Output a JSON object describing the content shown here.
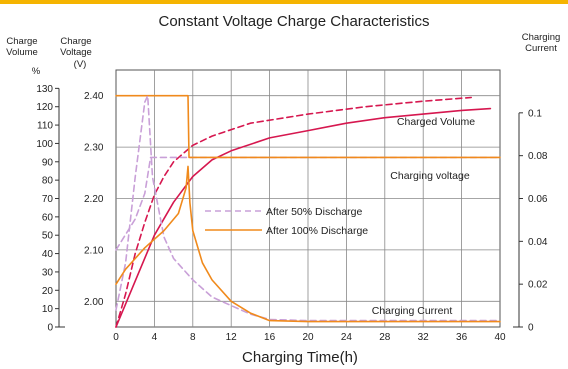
{
  "chart_data": {
    "type": "line",
    "title": "Constant Voltage Charge Characteristics",
    "xlabel": "Charging Time(h)",
    "x_ticks": [
      0,
      4,
      8,
      12,
      16,
      20,
      24,
      28,
      32,
      36,
      40
    ],
    "xlim": [
      0,
      40
    ],
    "axes": {
      "charge_volume": {
        "label_lines": [
          "Charge",
          "Volume"
        ],
        "unit": "%",
        "ticks": [
          0,
          10,
          20,
          30,
          40,
          50,
          60,
          70,
          80,
          90,
          100,
          110,
          120,
          130
        ],
        "range": [
          0,
          140
        ]
      },
      "charge_voltage": {
        "label_lines": [
          "Charge",
          "Voltage",
          "(V)"
        ],
        "ticks": [
          "2.00",
          "2.10",
          "2.20",
          "2.30",
          "2.40"
        ],
        "range": [
          1.95,
          2.45
        ]
      },
      "charging_current": {
        "label_lines": [
          "Charging",
          "Current"
        ],
        "ticks": [
          "0",
          "0.02",
          "0.04",
          "0.06",
          "0.08",
          "0.1"
        ],
        "range": [
          0,
          0.12
        ]
      }
    },
    "annotations": [
      "Charged Volume",
      "Charging voltage",
      "Charging Current"
    ],
    "legend": [
      {
        "label": "After 50% Discharge",
        "style": "dashed",
        "color": "#c9a0d8"
      },
      {
        "label": "After 100% Discharge",
        "style": "solid",
        "color": "#f08a1c"
      }
    ],
    "series": [
      {
        "curve": "charged_volume",
        "discharge": "50%",
        "style": "dashed",
        "color": "#d6174f",
        "axis": "charge_volume",
        "points": [
          [
            0,
            0
          ],
          [
            1,
            18
          ],
          [
            2,
            40
          ],
          [
            3,
            57
          ],
          [
            4,
            72
          ],
          [
            5,
            82
          ],
          [
            6,
            90
          ],
          [
            8,
            99
          ],
          [
            10,
            104
          ],
          [
            14,
            111
          ],
          [
            20,
            116
          ],
          [
            26,
            120
          ],
          [
            32,
            123
          ],
          [
            37,
            125
          ]
        ]
      },
      {
        "curve": "charged_volume",
        "discharge": "100%",
        "style": "solid",
        "color": "#d6174f",
        "axis": "charge_volume",
        "points": [
          [
            0,
            0
          ],
          [
            2,
            25
          ],
          [
            4,
            50
          ],
          [
            6,
            68
          ],
          [
            8,
            82
          ],
          [
            10,
            91
          ],
          [
            12,
            96
          ],
          [
            16,
            103
          ],
          [
            20,
            107
          ],
          [
            24,
            111
          ],
          [
            28,
            114
          ],
          [
            32,
            116
          ],
          [
            36,
            118
          ],
          [
            39,
            119
          ]
        ]
      },
      {
        "curve": "charging_voltage",
        "discharge": "50%",
        "style": "dashed",
        "color": "#c9a0d8",
        "axis": "charge_voltage",
        "points": [
          [
            0,
            2.1
          ],
          [
            2,
            2.16
          ],
          [
            3,
            2.21
          ],
          [
            3.6,
            2.28
          ],
          [
            6,
            2.28
          ],
          [
            7.5,
            2.28
          ],
          [
            40,
            2.28
          ]
        ]
      },
      {
        "curve": "charging_voltage",
        "discharge": "100%",
        "style": "solid",
        "color": "#f08a1c",
        "axis": "charge_voltage",
        "points": [
          [
            0,
            2.4
          ],
          [
            7.5,
            2.4
          ],
          [
            7.6,
            2.28
          ],
          [
            40,
            2.28
          ]
        ]
      },
      {
        "curve": "charging_current",
        "discharge": "50%",
        "style": "dashed",
        "color": "#c9a0d8",
        "axis": "charging_current",
        "points": [
          [
            0,
            0.008
          ],
          [
            1,
            0.03
          ],
          [
            2,
            0.07
          ],
          [
            3,
            0.105
          ],
          [
            3.3,
            0.108
          ],
          [
            3.8,
            0.07
          ],
          [
            5,
            0.042
          ],
          [
            6,
            0.032
          ],
          [
            8,
            0.022
          ],
          [
            10,
            0.014
          ],
          [
            12,
            0.01
          ],
          [
            14,
            0.006
          ],
          [
            16,
            0.0035
          ],
          [
            20,
            0.003
          ],
          [
            40,
            0.003
          ]
        ]
      },
      {
        "curve": "charging_current",
        "discharge": "100%",
        "style": "solid",
        "color": "#f08a1c",
        "axis": "charging_current",
        "points": [
          [
            0,
            0.02
          ],
          [
            1,
            0.027
          ],
          [
            3,
            0.037
          ],
          [
            5,
            0.045
          ],
          [
            6.5,
            0.053
          ],
          [
            7.3,
            0.065
          ],
          [
            7.5,
            0.075
          ],
          [
            7.7,
            0.058
          ],
          [
            8,
            0.045
          ],
          [
            9,
            0.03
          ],
          [
            10,
            0.022
          ],
          [
            12,
            0.012
          ],
          [
            14,
            0.0065
          ],
          [
            16,
            0.003
          ],
          [
            20,
            0.0025
          ],
          [
            40,
            0.0025
          ]
        ]
      }
    ]
  }
}
